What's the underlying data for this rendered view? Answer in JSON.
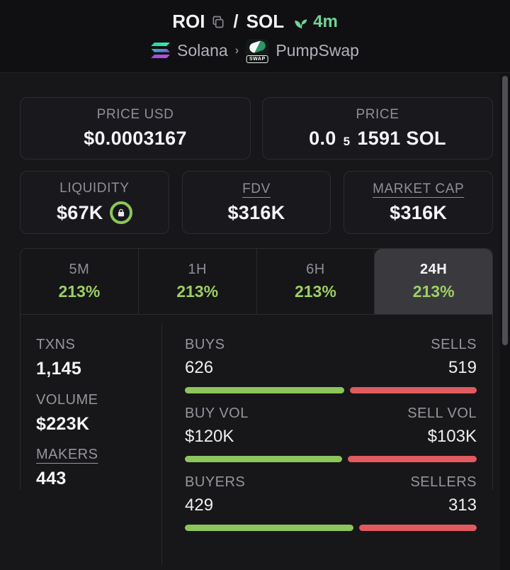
{
  "header": {
    "base": "ROI",
    "separator": "/",
    "quote": "SOL",
    "age": "4m",
    "chain": "Solana",
    "crumb_sep": "›",
    "dex": "PumpSwap",
    "swap_badge": "SWAP"
  },
  "boxes": {
    "price_usd": {
      "label": "PRICE USD",
      "value": "$0.0003167"
    },
    "price_native": {
      "label": "PRICE",
      "prefix": "0.0",
      "sub": "5",
      "rest": "1591 SOL"
    }
  },
  "metrics": [
    {
      "label": "LIQUIDITY",
      "value": "$67K",
      "locked": true
    },
    {
      "label": "FDV",
      "value": "$316K"
    },
    {
      "label": "MARKET CAP",
      "value": "$316K"
    }
  ],
  "timeframes": [
    {
      "label": "5M",
      "change": "213%",
      "active": false
    },
    {
      "label": "1H",
      "change": "213%",
      "active": false
    },
    {
      "label": "6H",
      "change": "213%",
      "active": false
    },
    {
      "label": "24H",
      "change": "213%",
      "active": true
    }
  ],
  "stats": {
    "rows": [
      {
        "total_label": "TXNS",
        "total_value": "1,145",
        "left_label": "BUYS",
        "left_value": "626",
        "left_num": 626,
        "right_label": "SELLS",
        "right_value": "519",
        "right_num": 519
      },
      {
        "total_label": "VOLUME",
        "total_value": "$223K",
        "left_label": "BUY VOL",
        "left_value": "$120K",
        "left_num": 120,
        "right_label": "SELL VOL",
        "right_value": "$103K",
        "right_num": 103
      },
      {
        "total_label": "MAKERS",
        "total_value": "443",
        "left_label": "BUYERS",
        "left_value": "429",
        "left_num": 429,
        "right_label": "SELLERS",
        "right_value": "313",
        "right_num": 313
      }
    ]
  },
  "colors": {
    "green": "#8cc65a",
    "red": "#e05a5f",
    "mint": "#72d396",
    "lime-text": "#9ccf63"
  }
}
